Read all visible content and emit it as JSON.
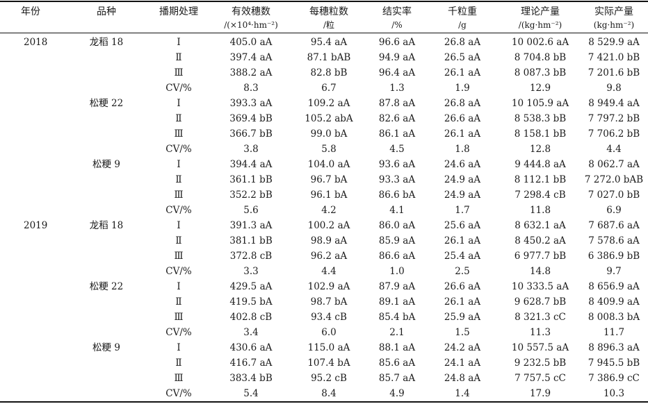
{
  "header": {
    "year": "年份",
    "variety": "品种",
    "treatment": "播期处理",
    "c1": {
      "name": "有效穗数",
      "unit": "/(×10⁴·hm⁻²)"
    },
    "c2": {
      "name": "每穗粒数",
      "unit": "/粒"
    },
    "c3": {
      "name": "结实率",
      "unit": "/%"
    },
    "c4": {
      "name": "千粒重",
      "unit": "/g"
    },
    "c5": {
      "name": "理论产量",
      "unit": "/(kg·hm⁻²)"
    },
    "c6": {
      "name": "实际产量",
      "unit": "(kg·hm⁻²)"
    }
  },
  "rows": [
    {
      "year": "2018",
      "variety": "龙稻 18",
      "treat": "Ⅰ",
      "v": [
        "405.0 aA",
        "95.4 aA",
        "96.6 aA",
        "26.8 aA",
        "10 002.6 aA",
        "8 529.9 aA"
      ]
    },
    {
      "year": "",
      "variety": "",
      "treat": "Ⅱ",
      "v": [
        "397.4 aA",
        "87.1 bAB",
        "94.9 aA",
        "26.5 aA",
        "8 704.8 bB",
        "7 421.0 bB"
      ]
    },
    {
      "year": "",
      "variety": "",
      "treat": "Ⅲ",
      "v": [
        "388.2 aA",
        "82.8 bB",
        "96.4 aA",
        "26.1 aA",
        "8 087.3 bB",
        "7 201.6 bB"
      ]
    },
    {
      "year": "",
      "variety": "",
      "treat": "CV/%",
      "v": [
        "8.3",
        "6.7",
        "1.3",
        "1.9",
        "12.9",
        "9.8"
      ]
    },
    {
      "year": "",
      "variety": "松粳 22",
      "treat": "Ⅰ",
      "v": [
        "393.3 aA",
        "109.2 aA",
        "87.8 aA",
        "26.8 aA",
        "10 105.9 aA",
        "8 949.4 aA"
      ]
    },
    {
      "year": "",
      "variety": "",
      "treat": "Ⅱ",
      "v": [
        "369.4 bB",
        "105.2 abA",
        "82.6 aA",
        "26.6 aA",
        "8 538.3 bB",
        "7 797.2 bB"
      ]
    },
    {
      "year": "",
      "variety": "",
      "treat": "Ⅲ",
      "v": [
        "366.7 bB",
        "99.0 bA",
        "86.1 aA",
        "26.1 aA",
        "8 158.1 bB",
        "7 706.2 bB"
      ]
    },
    {
      "year": "",
      "variety": "",
      "treat": "CV/%",
      "v": [
        "3.8",
        "5.8",
        "4.5",
        "1.8",
        "12.8",
        "4.4"
      ]
    },
    {
      "year": "",
      "variety": "松粳 9",
      "treat": "Ⅰ",
      "v": [
        "394.4 aA",
        "104.0 aA",
        "93.6 aA",
        "24.6 aA",
        "9 444.8 aA",
        "8 062.7 aA"
      ]
    },
    {
      "year": "",
      "variety": "",
      "treat": "Ⅱ",
      "v": [
        "361.1 bB",
        "96.7 bA",
        "93.3 aA",
        "24.9 aA",
        "8 112.1 bB",
        "7 272.0 bAB"
      ]
    },
    {
      "year": "",
      "variety": "",
      "treat": "Ⅲ",
      "v": [
        "352.2 bB",
        "96.1 bA",
        "86.6 bA",
        "24.9 aA",
        "7 298.4 cB",
        "7 027.0 bB"
      ]
    },
    {
      "year": "",
      "variety": "",
      "treat": "CV/%",
      "v": [
        "5.6",
        "4.2",
        "4.1",
        "1.7",
        "11.8",
        "6.9"
      ]
    },
    {
      "year": "2019",
      "variety": "龙稻 18",
      "treat": "Ⅰ",
      "v": [
        "391.3 aA",
        "100.2 aA",
        "86.0 aA",
        "25.6 aA",
        "8 632.1 aA",
        "7 687.6 aA"
      ]
    },
    {
      "year": "",
      "variety": "",
      "treat": "Ⅱ",
      "v": [
        "381.1 bB",
        "98.9 aA",
        "85.9 aA",
        "26.1 aA",
        "8 450.2 aA",
        "7 578.6 aA"
      ]
    },
    {
      "year": "",
      "variety": "",
      "treat": "Ⅲ",
      "v": [
        "372.8 cB",
        "96.2 aA",
        "86.6 aA",
        "25.4 aA",
        "6 977.7 bB",
        "6 386.9 bB"
      ]
    },
    {
      "year": "",
      "variety": "",
      "treat": "CV/%",
      "v": [
        "3.3",
        "4.4",
        "1.0",
        "2.5",
        "14.8",
        "9.7"
      ]
    },
    {
      "year": "",
      "variety": "松粳 22",
      "treat": "Ⅰ",
      "v": [
        "429.5 aA",
        "102.9 aA",
        "87.9 aA",
        "26.6 aA",
        "10 333.5 aA",
        "8 656.9 aA"
      ]
    },
    {
      "year": "",
      "variety": "",
      "treat": "Ⅱ",
      "v": [
        "419.5 bA",
        "98.7 bA",
        "89.1 aA",
        "26.1 aA",
        "9 628.7 bB",
        "8 409.9 aA"
      ]
    },
    {
      "year": "",
      "variety": "",
      "treat": "Ⅲ",
      "v": [
        "402.8 cB",
        "93.4 cB",
        "85.4 bA",
        "25.9 aA",
        "8 321.3 cC",
        "8 008.3 bA"
      ]
    },
    {
      "year": "",
      "variety": "",
      "treat": "CV/%",
      "v": [
        "3.4",
        "6.0",
        "2.1",
        "1.5",
        "11.3",
        "11.7"
      ]
    },
    {
      "year": "",
      "variety": "松粳 9",
      "treat": "Ⅰ",
      "v": [
        "430.6 aA",
        "115.0 aA",
        "88.1 aA",
        "24.2 aA",
        "10 557.5 aA",
        "8 896.3 aA"
      ]
    },
    {
      "year": "",
      "variety": "",
      "treat": "Ⅱ",
      "v": [
        "416.7 aA",
        "107.4 bA",
        "85.6 aA",
        "24.1 aA",
        "9 232.5 bB",
        "7 945.5 bB"
      ]
    },
    {
      "year": "",
      "variety": "",
      "treat": "Ⅲ",
      "v": [
        "383.4 bB",
        "95.2 cB",
        "85.7 aA",
        "24.8 aA",
        "7 757.5 cC",
        "7 386.9 cC"
      ]
    },
    {
      "year": "",
      "variety": "",
      "treat": "CV/%",
      "v": [
        "5.4",
        "8.4",
        "4.9",
        "1.4",
        "17.9",
        "10.3"
      ]
    }
  ]
}
